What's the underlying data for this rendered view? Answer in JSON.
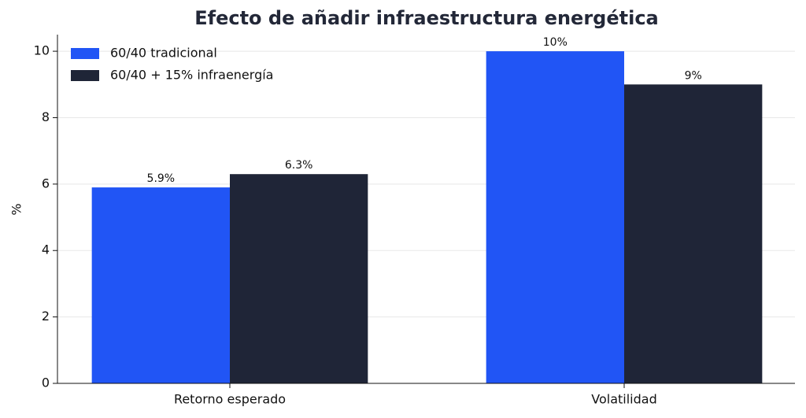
{
  "chart_data": {
    "type": "bar",
    "title": "Efecto de añadir infraestructura energética",
    "y_label": "%",
    "categories": [
      "Retorno esperado",
      "Volatilidad"
    ],
    "series": [
      {
        "name": "60/40 tradicional",
        "color": "#2155f5",
        "values": [
          5.9,
          10
        ],
        "value_labels": [
          "5.9%",
          "10%"
        ]
      },
      {
        "name": "60/40 + 15% infraenergía",
        "color": "#1f2537",
        "values": [
          6.3,
          9
        ],
        "value_labels": [
          "6.3%",
          "9%"
        ]
      }
    ],
    "ylim": [
      0,
      10.5
    ],
    "yticks": [
      0,
      2,
      4,
      6,
      8,
      10
    ],
    "grid": true,
    "legend": "upper left"
  }
}
